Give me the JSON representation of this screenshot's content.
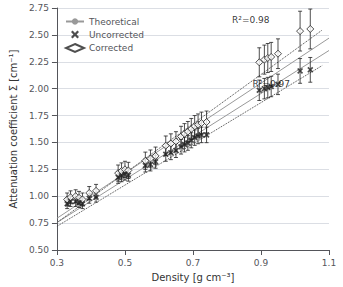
{
  "chart_data": {
    "type": "scatter",
    "xlabel": "Density [g cm⁻³]",
    "ylabel": "Attenuation coefficient Σ [cm⁻¹]",
    "xlim": [
      0.3,
      1.1
    ],
    "ylim": [
      0.5,
      2.75
    ],
    "xticks": [
      0.3,
      0.5,
      0.7,
      0.9,
      1.1
    ],
    "yticks": [
      {
        "value": 0.5,
        "label": "0.50"
      },
      0.75,
      {
        "value": 1.0,
        "label": "1.00"
      },
      1.25,
      {
        "value": 1.5,
        "label": "1.50"
      },
      1.75,
      {
        "value": 2.0,
        "label": "2.00"
      },
      2.25,
      {
        "value": 2.5,
        "label": "2.50"
      },
      2.75
    ],
    "grid": "y",
    "legend": "upper left",
    "series": [
      {
        "name": "Theoretical",
        "type": "line",
        "color": "#999999",
        "line_style": "solid",
        "x": [
          0.3,
          1.1
        ],
        "values": [
          0.795,
          2.47
        ]
      },
      {
        "type": "line",
        "color": "#999999",
        "line_style": "solid",
        "x": [
          0.3,
          1.1
        ],
        "values": [
          0.755,
          2.355
        ]
      },
      {
        "type": "line",
        "color": "#444444",
        "line_style": "dotted",
        "x": [
          0.3,
          1.08
        ],
        "values": [
          0.72,
          2.215
        ]
      },
      {
        "type": "line",
        "color": "#444444",
        "line_style": "dotted",
        "x": [
          0.3,
          1.08
        ],
        "values": [
          0.755,
          2.545
        ]
      },
      {
        "name": "Uncorrected",
        "type": "scatter",
        "marker": "x",
        "color": "#222222",
        "x": [
          0.33,
          0.34,
          0.355,
          0.365,
          0.375,
          0.395,
          0.415,
          0.48,
          0.49,
          0.5,
          0.51,
          0.56,
          0.575,
          0.59,
          0.62,
          0.635,
          0.65,
          0.665,
          0.675,
          0.685,
          0.695,
          0.705,
          0.715,
          0.725,
          0.74,
          0.895,
          0.91,
          0.92,
          0.93,
          0.95,
          1.015,
          1.045
        ],
        "values": [
          0.93,
          0.95,
          0.95,
          0.94,
          0.93,
          0.98,
          0.99,
          1.175,
          1.19,
          1.205,
          1.195,
          1.285,
          1.295,
          1.32,
          1.39,
          1.405,
          1.425,
          1.46,
          1.48,
          1.495,
          1.52,
          1.545,
          1.56,
          1.57,
          1.57,
          1.985,
          2.0,
          2.01,
          2.02,
          2.04,
          2.165,
          2.175
        ],
        "errors": [
          0.045,
          0.045,
          0.045,
          0.045,
          0.045,
          0.045,
          0.045,
          0.055,
          0.055,
          0.055,
          0.055,
          0.06,
          0.06,
          0.06,
          0.065,
          0.065,
          0.065,
          0.068,
          0.068,
          0.068,
          0.07,
          0.072,
          0.072,
          0.072,
          0.072,
          0.095,
          0.095,
          0.095,
          0.095,
          0.095,
          0.115,
          0.115
        ]
      },
      {
        "name": "Corrected",
        "type": "scatter",
        "marker": "diamond",
        "color": "#222222",
        "x": [
          0.33,
          0.34,
          0.355,
          0.365,
          0.375,
          0.395,
          0.415,
          0.48,
          0.49,
          0.5,
          0.51,
          0.56,
          0.575,
          0.59,
          0.62,
          0.635,
          0.65,
          0.665,
          0.675,
          0.685,
          0.695,
          0.705,
          0.715,
          0.725,
          0.74,
          0.895,
          0.91,
          0.92,
          0.93,
          0.95,
          1.015,
          1.045
        ],
        "values": [
          0.97,
          0.99,
          1.0,
          0.985,
          0.97,
          1.03,
          1.05,
          1.215,
          1.235,
          1.25,
          1.24,
          1.33,
          1.35,
          1.375,
          1.47,
          1.49,
          1.51,
          1.555,
          1.58,
          1.6,
          1.625,
          1.65,
          1.665,
          1.68,
          1.69,
          2.245,
          2.27,
          2.285,
          2.295,
          2.325,
          2.535,
          2.555
        ],
        "errors": [
          0.06,
          0.06,
          0.06,
          0.06,
          0.06,
          0.06,
          0.06,
          0.075,
          0.075,
          0.075,
          0.075,
          0.08,
          0.08,
          0.082,
          0.09,
          0.09,
          0.09,
          0.095,
          0.095,
          0.095,
          0.098,
          0.1,
          0.1,
          0.102,
          0.102,
          0.135,
          0.135,
          0.135,
          0.135,
          0.138,
          0.185,
          0.185
        ]
      }
    ],
    "annotations": [
      {
        "text": "R²=0.98",
        "x": 0.815,
        "y": 2.595
      },
      {
        "text": "R²=0.97",
        "x": 0.875,
        "y": 2.0
      }
    ]
  }
}
